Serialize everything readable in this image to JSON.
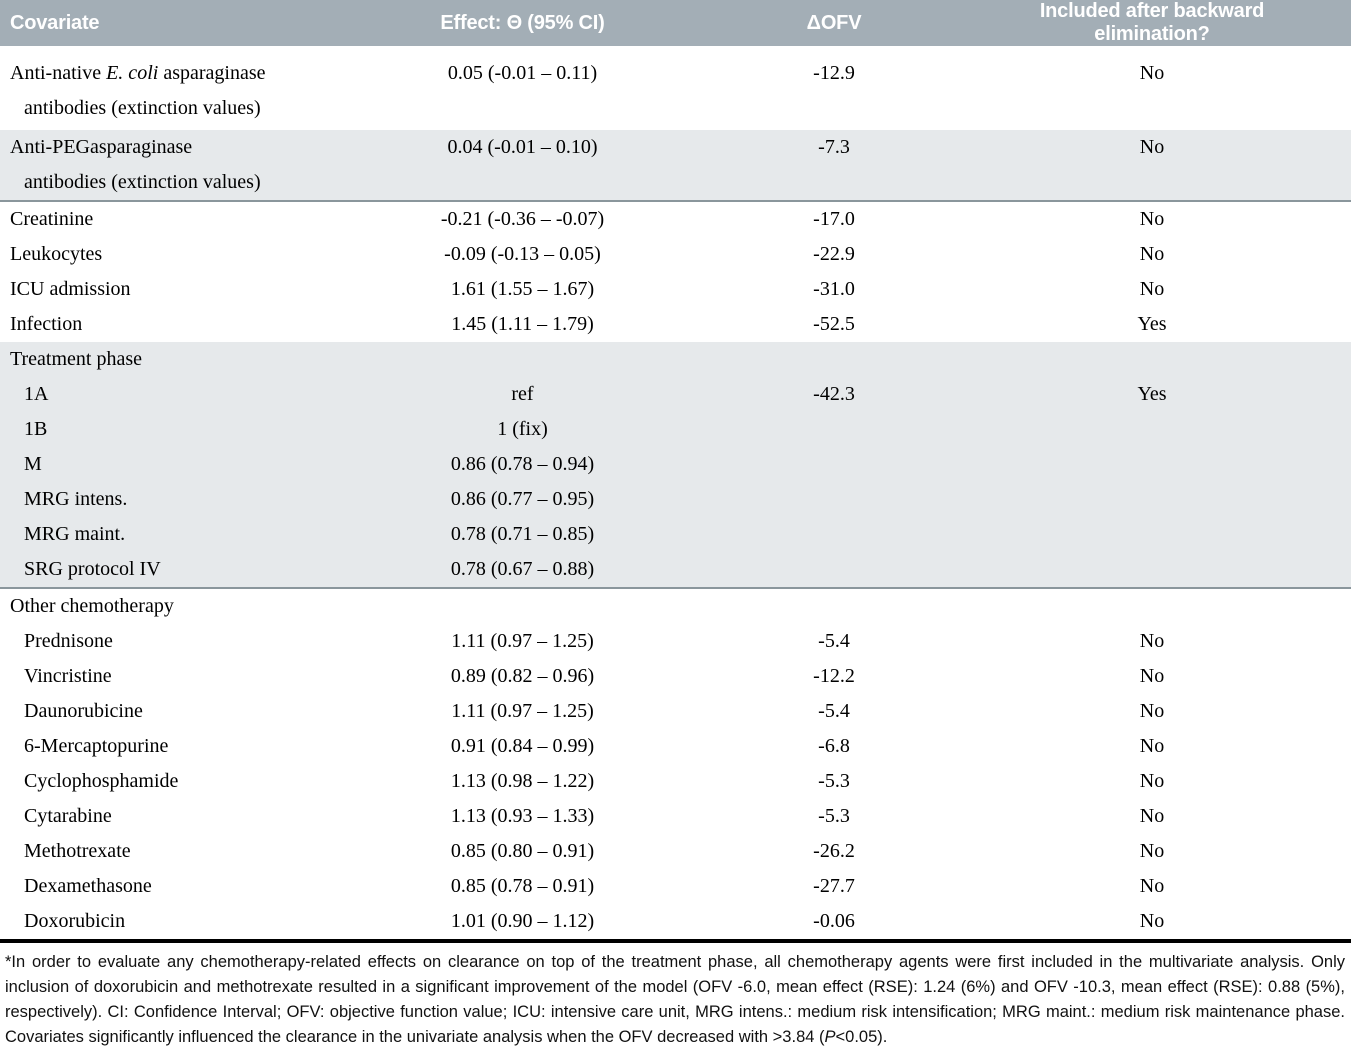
{
  "header": {
    "covariate": "Covariate",
    "effect": "Effect: Θ (95% CI)",
    "dofv": "ΔOFV",
    "included": "Included after backward elimination?"
  },
  "rows": [
    {
      "kind": "data",
      "first": true,
      "shaded": false,
      "lines": [
        [
          {
            "t": "Anti-native "
          },
          {
            "t": "E. coli",
            "i": true
          },
          {
            "t": " asparaginase"
          }
        ],
        [
          {
            "t": "antibodies (extinction values)"
          }
        ]
      ],
      "effect": "0.05 (-0.01 – 0.11)",
      "dofv": "-12.9",
      "included": "No"
    },
    {
      "kind": "data",
      "shaded": true,
      "divider": true,
      "lines": [
        [
          {
            "t": "Anti-PEGasparaginase"
          }
        ],
        [
          {
            "t": "antibodies (extinction values)"
          }
        ]
      ],
      "effect": "0.04 (-0.01 – 0.10)",
      "dofv": "-7.3",
      "included": "No"
    },
    {
      "kind": "data",
      "label": "Creatinine",
      "effect": "-0.21 (-0.36 – -0.07)",
      "dofv": "-17.0",
      "included": "No"
    },
    {
      "kind": "data",
      "label": "Leukocytes",
      "effect": "-0.09 (-0.13 – 0.05)",
      "dofv": "-22.9",
      "included": "No"
    },
    {
      "kind": "data",
      "label": "ICU admission",
      "effect": "1.61 (1.55 – 1.67)",
      "dofv": "-31.0",
      "included": "No"
    },
    {
      "kind": "data",
      "label": "Infection",
      "effect": "1.45 (1.11 – 1.79)",
      "dofv": "-52.5",
      "included": "Yes"
    },
    {
      "kind": "section",
      "shaded": true,
      "label": "Treatment phase",
      "effect": "",
      "dofv": "",
      "included": ""
    },
    {
      "kind": "data",
      "sub": true,
      "shaded": true,
      "label": "1A",
      "effect": "ref",
      "dofv": "-42.3",
      "included": "Yes"
    },
    {
      "kind": "data",
      "sub": true,
      "shaded": true,
      "label": "1B",
      "effect": "1 (fix)",
      "dofv": "",
      "included": ""
    },
    {
      "kind": "data",
      "sub": true,
      "shaded": true,
      "label": "M",
      "effect": "0.86 (0.78 – 0.94)",
      "dofv": "",
      "included": ""
    },
    {
      "kind": "data",
      "sub": true,
      "shaded": true,
      "label": "MRG intens.",
      "effect": "0.86 (0.77 – 0.95)",
      "dofv": "",
      "included": ""
    },
    {
      "kind": "data",
      "sub": true,
      "shaded": true,
      "label": "MRG maint.",
      "effect": "0.78 (0.71 – 0.85)",
      "dofv": "",
      "included": ""
    },
    {
      "kind": "data",
      "sub": true,
      "shaded": true,
      "divider": true,
      "label": "SRG protocol IV",
      "effect": "0.78 (0.67 – 0.88)",
      "dofv": "",
      "included": ""
    },
    {
      "kind": "section",
      "label": "Other chemotherapy",
      "effect": "",
      "dofv": "",
      "included": ""
    },
    {
      "kind": "data",
      "sub": true,
      "label": "Prednisone",
      "effect": "1.11 (0.97 – 1.25)",
      "dofv": "-5.4",
      "included": "No"
    },
    {
      "kind": "data",
      "sub": true,
      "label": "Vincristine",
      "effect": "0.89 (0.82 – 0.96)",
      "dofv": "-12.2",
      "included": "No"
    },
    {
      "kind": "data",
      "sub": true,
      "label": "Daunorubicine",
      "effect": "1.11 (0.97 – 1.25)",
      "dofv": "-5.4",
      "included": "No"
    },
    {
      "kind": "data",
      "sub": true,
      "label": "6-Mercaptopurine",
      "effect": "0.91 (0.84 – 0.99)",
      "dofv": "-6.8",
      "included": "No"
    },
    {
      "kind": "data",
      "sub": true,
      "label": "Cyclophosphamide",
      "effect": "1.13 (0.98 – 1.22)",
      "dofv": "-5.3",
      "included": "No"
    },
    {
      "kind": "data",
      "sub": true,
      "label": "Cytarabine",
      "effect": "1.13 (0.93 – 1.33)",
      "dofv": "-5.3",
      "included": "No"
    },
    {
      "kind": "data",
      "sub": true,
      "label": "Methotrexate",
      "effect": "0.85 (0.80 – 0.91)",
      "dofv": "-26.2",
      "included": "No"
    },
    {
      "kind": "data",
      "sub": true,
      "label": "Dexamethasone",
      "effect": "0.85 (0.78 – 0.91)",
      "dofv": "-27.7",
      "included": "No"
    },
    {
      "kind": "data",
      "sub": true,
      "thick": true,
      "label": "Doxorubicin",
      "effect": "1.01 (0.90 – 1.12)",
      "dofv": "-0.06",
      "included": "No"
    }
  ],
  "footnote": {
    "pre": "*In order to evaluate any chemotherapy-related effects on clearance on top of the treatment phase, all chemotherapy agents were first included in the multivariate analysis. Only inclusion of doxorubicin and methotrexate resulted in a significant improvement of the model (OFV -6.0, mean effect (RSE): 1.24 (6%) and OFV -10.3, mean effect (RSE): 0.88 (5%), respectively). CI: Confidence Interval; OFV: objective function value; ICU: intensive care unit, MRG intens.: medium risk intensification; MRG maint.: medium risk maintenance phase. Covariates significantly influenced the clearance in the univariate analysis when the OFV decreased with >3.84 (",
    "italic_p": "P",
    "post": "<0.05)."
  },
  "colors": {
    "header_bg": "#a3aeb6",
    "header_text": "#ffffff",
    "shaded_row_bg": "#e6e9eb",
    "divider_line": "#8a969c",
    "thick_rule": "#000000"
  }
}
